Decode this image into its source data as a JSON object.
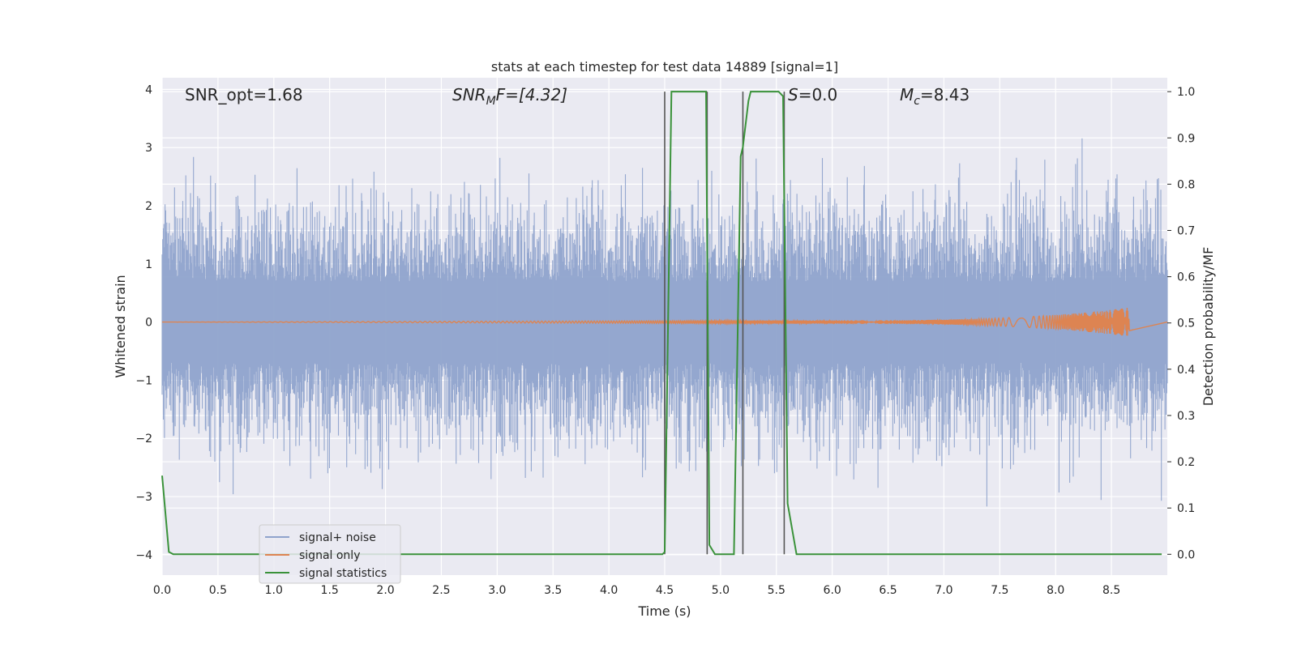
{
  "chart_data": {
    "type": "line",
    "title": "stats at each timestep for test data 14889 [signal=1]",
    "xlabel": "Time (s)",
    "ylabel_left": "Whitened strain",
    "ylabel_right": "Detection probability/MF",
    "xlim": [
      0.0,
      9.0
    ],
    "ylim_left": [
      -4.35,
      4.2
    ],
    "ylim_right": [
      -0.045,
      1.03
    ],
    "x_ticks": [
      "0.0",
      "0.5",
      "1.0",
      "1.5",
      "2.0",
      "2.5",
      "3.0",
      "3.5",
      "4.0",
      "4.5",
      "5.0",
      "5.5",
      "6.0",
      "6.5",
      "7.0",
      "7.5",
      "8.0",
      "8.5"
    ],
    "y_left_ticks": [
      "4",
      "3",
      "2",
      "1",
      "0",
      "−1",
      "−2",
      "−3",
      "−4"
    ],
    "y_right_ticks": [
      "1.0",
      "0.9",
      "0.8",
      "0.7",
      "0.6",
      "0.5",
      "0.4",
      "0.3",
      "0.2",
      "0.1",
      "0.0"
    ],
    "grid": true,
    "legend_position": "lower-left",
    "annotations": {
      "snr_opt": "SNR_opt=1.68",
      "snr_mf_base": "SNR",
      "snr_mf_sub": "M",
      "snr_mf_tail": "F=[4.32]",
      "s_var": "S",
      "s_val": "=0.0",
      "mc_var": "M",
      "mc_sub": "c",
      "mc_val": "=8.43"
    },
    "series": [
      {
        "name": "signal+ noise",
        "color": "#8fa3cc",
        "description_values": "noise band roughly between -2 and 2 with peaks near +/-3.5"
      },
      {
        "name": "signal only",
        "color": "#dd8452",
        "x": [
          0,
          6.0,
          8.66
        ],
        "amplitude": [
          0.0,
          0.03,
          0.25
        ]
      },
      {
        "name": "signal statistics",
        "color": "#3a923a",
        "x": [
          0.0,
          0.06,
          0.1,
          0.2,
          0.4,
          4.48,
          4.5,
          4.56,
          4.6,
          4.85,
          4.87,
          4.9,
          4.95,
          5.02,
          5.12,
          5.18,
          5.2,
          5.25,
          5.27,
          5.52,
          5.56,
          5.6,
          5.68,
          5.75,
          8.95
        ],
        "values": [
          0.17,
          0.005,
          0.0,
          0.0,
          0.0,
          0.0,
          0.005,
          1.0,
          1.0,
          1.0,
          1.0,
          0.02,
          0.0,
          0.0,
          0.0,
          0.86,
          0.88,
          0.98,
          1.0,
          1.0,
          0.99,
          0.11,
          0.0,
          0.0,
          0.0
        ]
      }
    ],
    "vertical_lines_x": [
      4.5,
      4.88,
      5.2,
      5.57
    ],
    "vertical_lines_color": "#555555"
  }
}
